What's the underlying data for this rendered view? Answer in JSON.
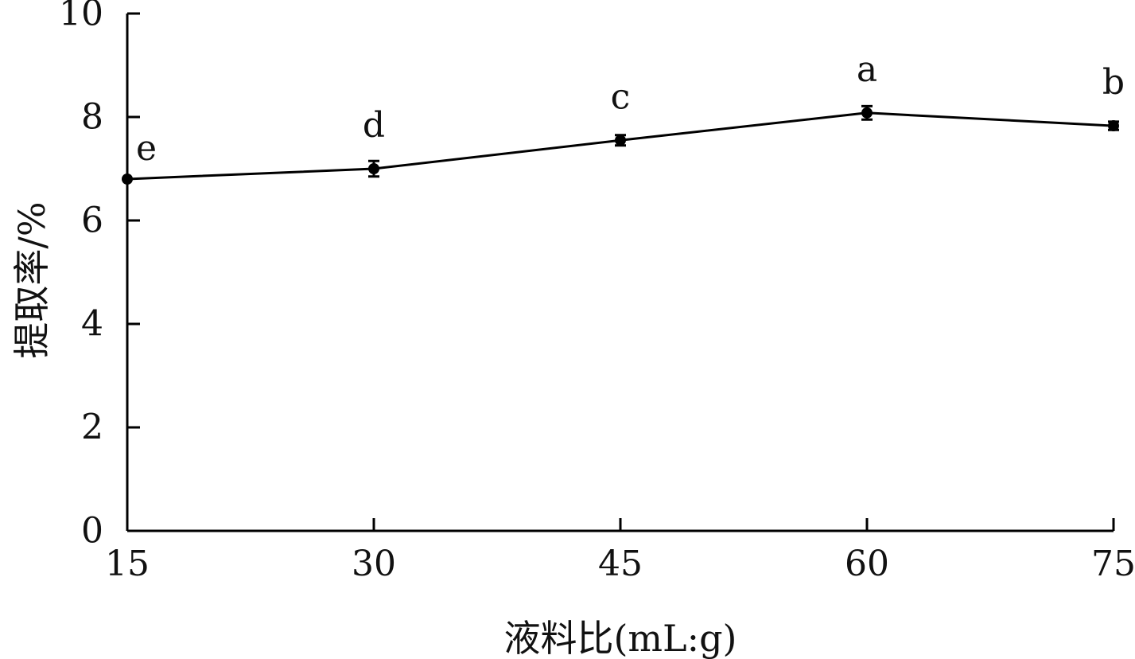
{
  "chart_data": {
    "type": "line",
    "xlabel": "液料比(mL:g)",
    "ylabel": "提取率/%",
    "x": [
      15,
      30,
      45,
      60,
      75
    ],
    "x_ticks": [
      "15",
      "30",
      "45",
      "60",
      "75"
    ],
    "y_ticks": [
      "0",
      "2",
      "4",
      "6",
      "8",
      "10"
    ],
    "xlim": [
      15,
      75
    ],
    "ylim": [
      0,
      10
    ],
    "grid": false,
    "series": [
      {
        "values": [
          6.8,
          7.0,
          7.55,
          8.08,
          7.83
        ],
        "error": [
          0.0,
          0.15,
          0.1,
          0.13,
          0.08
        ],
        "labels": [
          "e",
          "d",
          "c",
          "a",
          "b"
        ],
        "color": "#000000"
      }
    ]
  }
}
